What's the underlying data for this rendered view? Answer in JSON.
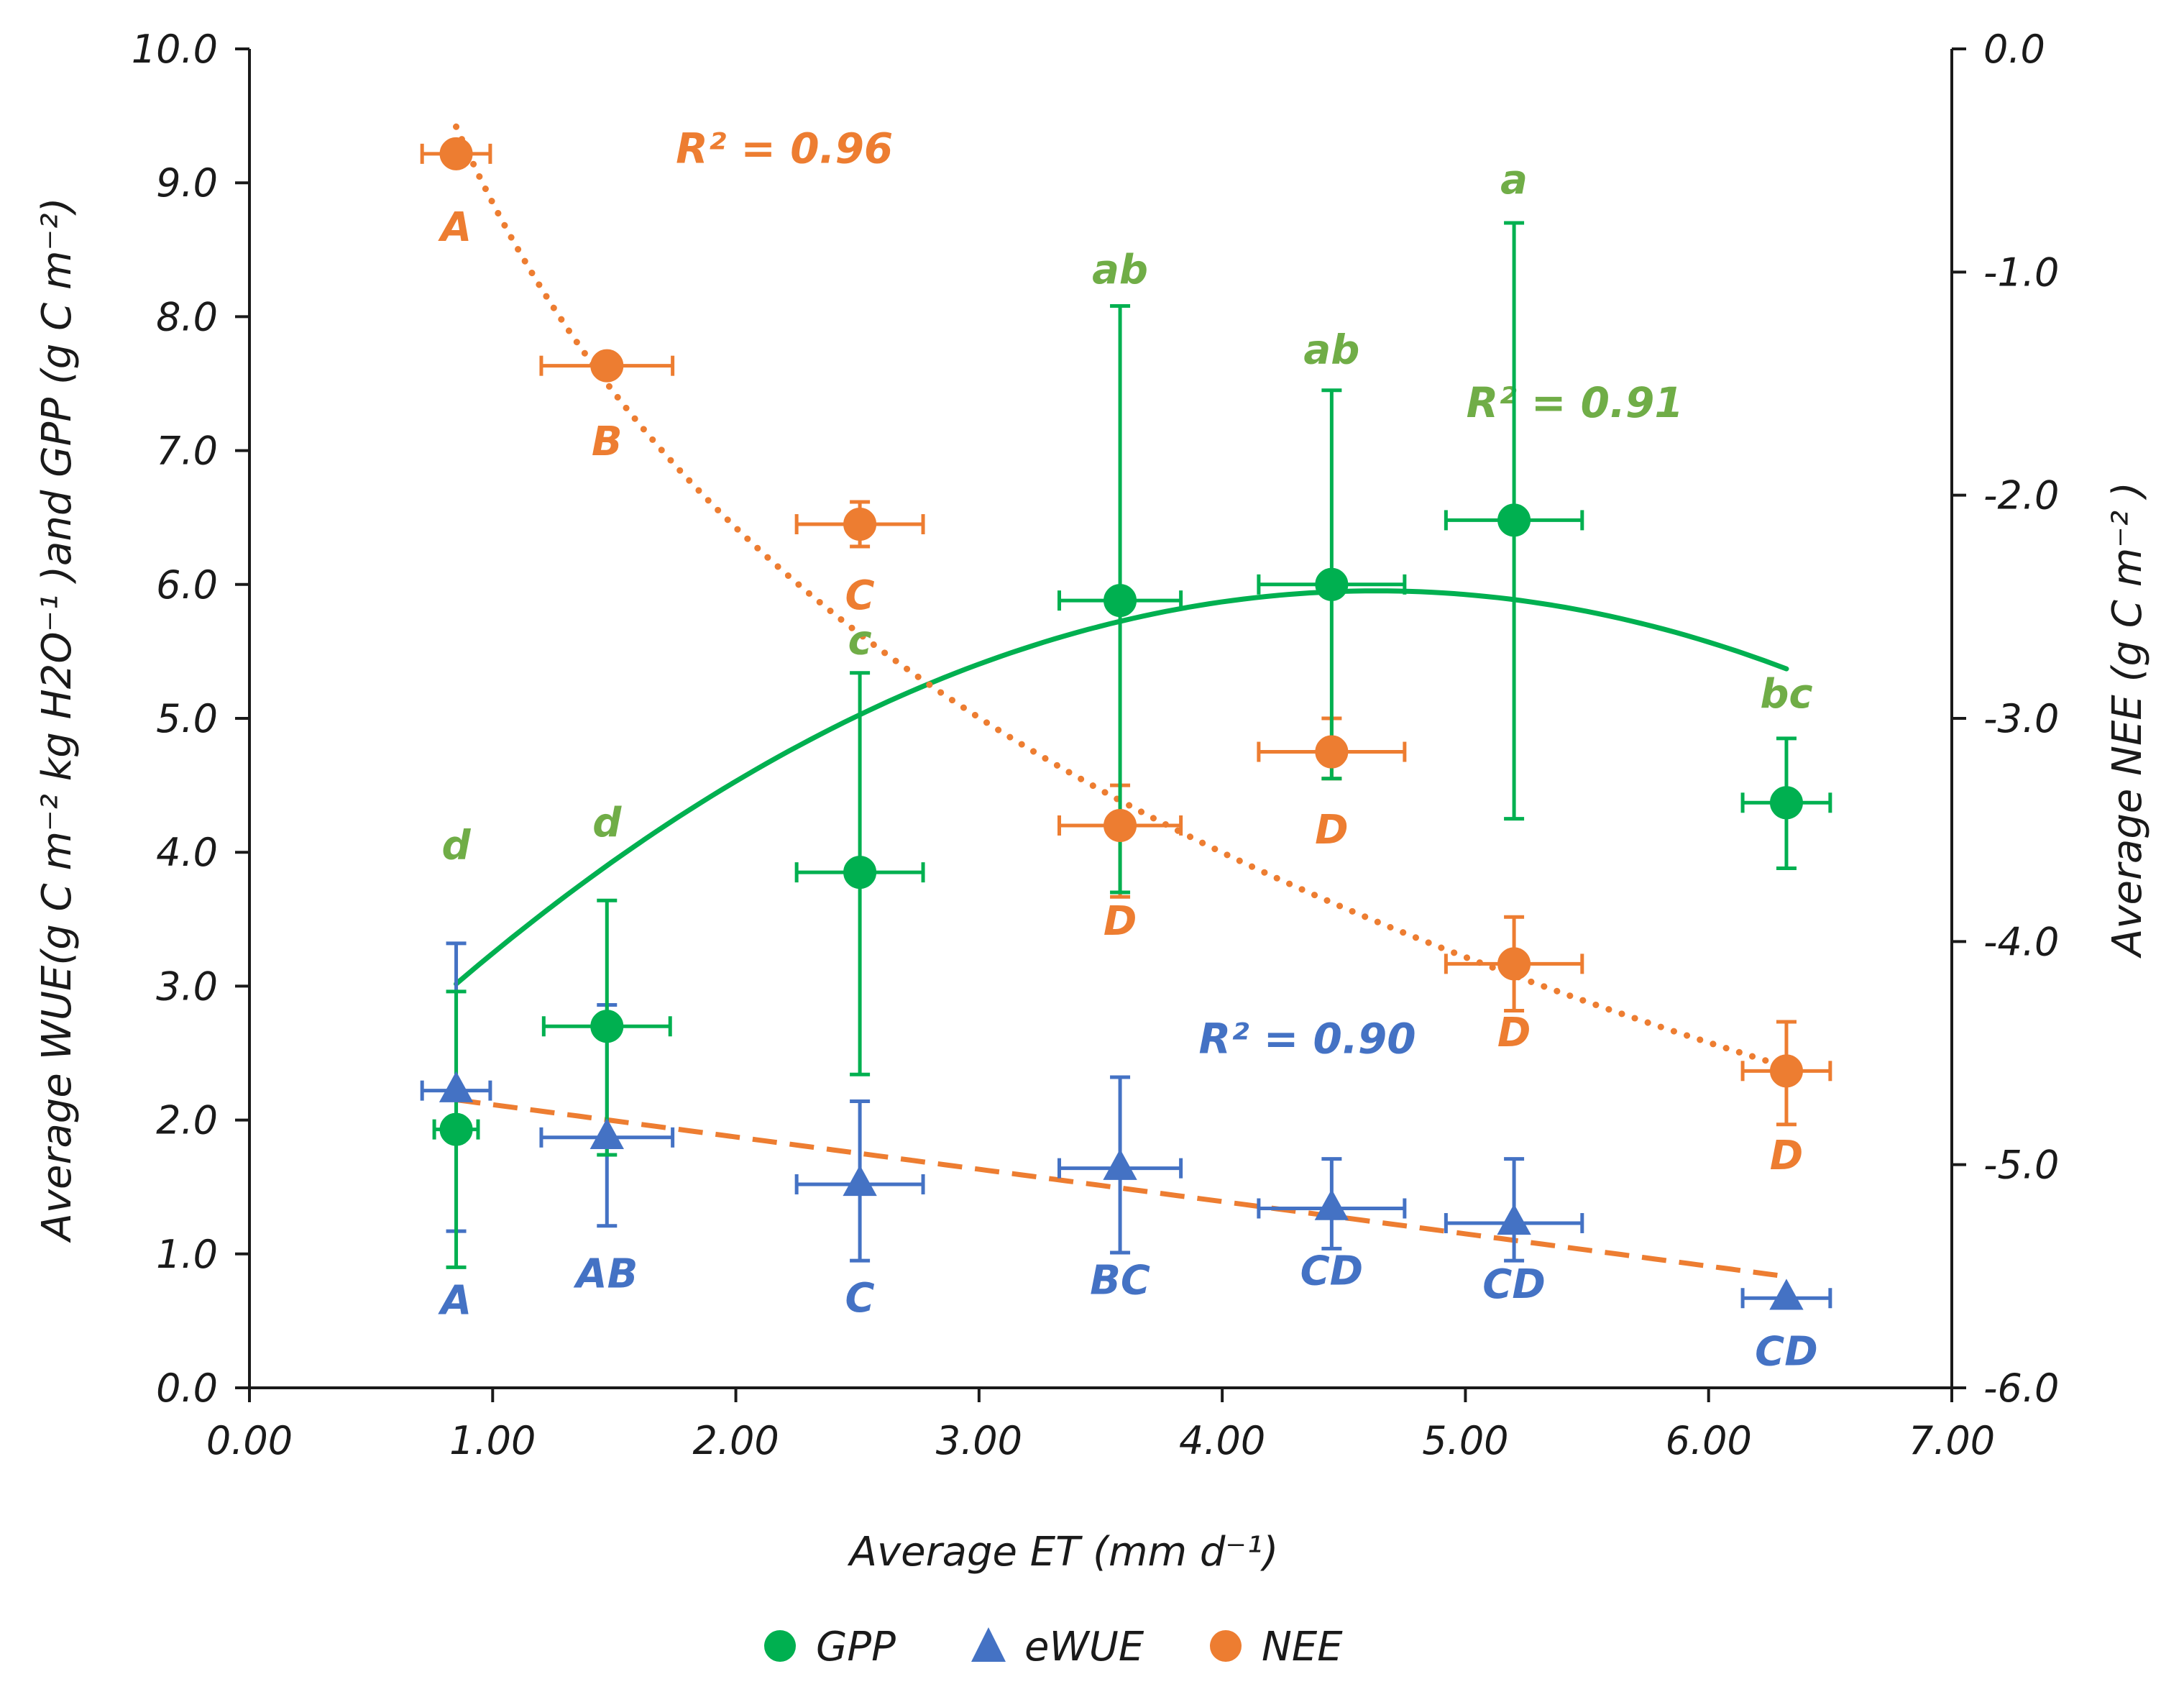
{
  "chart_data": {
    "type": "scatter",
    "xlabel": "Average ET (mm d⁻¹)",
    "ylabel_left": "Average WUE(g C m⁻² kg H2O⁻¹ )and GPP (g C m⁻²)",
    "ylabel_right": "Average NEE (g C m⁻² )",
    "xlim": [
      0,
      7
    ],
    "ylim_left": [
      0,
      10
    ],
    "ylim_right": [
      -6,
      0
    ],
    "x_ticks": [
      "0.00",
      "1.00",
      "2.00",
      "3.00",
      "4.00",
      "5.00",
      "6.00",
      "7.00"
    ],
    "y_left_ticks": [
      "0.0",
      "1.0",
      "2.0",
      "3.0",
      "4.0",
      "5.0",
      "6.0",
      "7.0",
      "8.0",
      "9.0",
      "10.0"
    ],
    "y_right_ticks": [
      "0.0",
      "-1.0",
      "-2.0",
      "-3.0",
      "-4.0",
      "-5.0",
      "-6.0"
    ],
    "colors": {
      "GPP": "#00b050",
      "eWUE": "#4472c4",
      "NEE": "#ed7d31"
    },
    "series": [
      {
        "name": "GPP",
        "axis": "left",
        "marker": "circle",
        "points": [
          {
            "x": 0.85,
            "y": 1.93,
            "xerr": 0.09,
            "yerr_low": 1.03,
            "yerr_high": 1.03,
            "label": "d",
            "label_y": 3.95
          },
          {
            "x": 1.47,
            "y": 2.7,
            "xerr": 0.26,
            "yerr_low": 0.96,
            "yerr_high": 0.94,
            "label": "d",
            "label_y": 4.12
          },
          {
            "x": 2.51,
            "y": 3.85,
            "xerr": 0.26,
            "yerr_low": 1.51,
            "yerr_high": 1.49,
            "label": "c",
            "label_y": 5.48
          },
          {
            "x": 3.58,
            "y": 5.88,
            "xerr": 0.25,
            "yerr_low": 2.18,
            "yerr_high": 2.2,
            "label": "ab",
            "label_y": 8.25
          },
          {
            "x": 4.45,
            "y": 6.0,
            "xerr": 0.3,
            "yerr_low": 1.45,
            "yerr_high": 1.45,
            "label": "ab",
            "label_y": 7.65
          },
          {
            "x": 5.2,
            "y": 6.48,
            "xerr": 0.28,
            "yerr_low": 2.23,
            "yerr_high": 2.22,
            "label": "a",
            "label_y": 8.92
          },
          {
            "x": 6.32,
            "y": 4.37,
            "xerr": 0.18,
            "yerr_low": 0.49,
            "yerr_high": 0.48,
            "label": "bc",
            "label_y": 5.08
          }
        ],
        "trend": {
          "kind": "quadratic",
          "coeffs": [
            -0.205,
            1.9,
            1.55
          ],
          "x_range": [
            0.85,
            6.32
          ],
          "r2_label": "R² = 0.91",
          "label_x": 5.45,
          "label_y": 7.25
        }
      },
      {
        "name": "eWUE",
        "axis": "left",
        "marker": "triangle",
        "points": [
          {
            "x": 0.85,
            "y": 2.22,
            "xerr": 0.14,
            "yerr_low": 1.05,
            "yerr_high": 1.1,
            "label": "A",
            "label_y": 0.55
          },
          {
            "x": 1.47,
            "y": 1.87,
            "xerr": 0.27,
            "yerr_low": 0.66,
            "yerr_high": 0.99,
            "label": "AB",
            "label_y": 0.75
          },
          {
            "x": 2.51,
            "y": 1.52,
            "xerr": 0.26,
            "yerr_low": 0.57,
            "yerr_high": 0.62,
            "label": "C",
            "label_y": 0.57
          },
          {
            "x": 3.58,
            "y": 1.64,
            "xerr": 0.25,
            "yerr_low": 0.63,
            "yerr_high": 0.68,
            "label": "BC",
            "label_y": 0.7
          },
          {
            "x": 4.45,
            "y": 1.34,
            "xerr": 0.3,
            "yerr_low": 0.3,
            "yerr_high": 0.37,
            "label": "CD",
            "label_y": 0.77
          },
          {
            "x": 5.2,
            "y": 1.23,
            "xerr": 0.28,
            "yerr_low": 0.28,
            "yerr_high": 0.48,
            "label": "CD",
            "label_y": 0.67
          },
          {
            "x": 6.32,
            "y": 0.67,
            "xerr": 0.18,
            "yerr_low": 0.0,
            "yerr_high": 0.0,
            "label": "CD",
            "label_y": 0.17
          }
        ],
        "trend": {
          "kind": "linear",
          "coeffs": [
            -0.2412,
            2.356
          ],
          "x_range": [
            0.85,
            6.32
          ],
          "r2_label": "R² = 0.90",
          "label_x": 4.35,
          "label_y": 2.5
        }
      },
      {
        "name": "NEE",
        "axis": "right",
        "marker": "circle",
        "points": [
          {
            "x": 0.85,
            "y": -0.47,
            "xerr": 0.14,
            "yerr_low": 0.0,
            "yerr_high": 0.0,
            "label": "A",
            "label_y": -0.86
          },
          {
            "x": 1.47,
            "y": -1.42,
            "xerr": 0.27,
            "yerr_low": 0.05,
            "yerr_high": 0.05,
            "label": "B",
            "label_y": -1.82
          },
          {
            "x": 2.51,
            "y": -2.13,
            "xerr": 0.26,
            "yerr_low": 0.1,
            "yerr_high": 0.1,
            "label": "C",
            "label_y": -2.51
          },
          {
            "x": 3.58,
            "y": -3.48,
            "xerr": 0.25,
            "yerr_low": 0.32,
            "yerr_high": 0.18,
            "label": "D",
            "label_y": -3.97
          },
          {
            "x": 4.45,
            "y": -3.15,
            "xerr": 0.3,
            "yerr_low": 0.12,
            "yerr_high": 0.15,
            "label": "D",
            "label_y": -3.56
          },
          {
            "x": 5.2,
            "y": -4.1,
            "xerr": 0.28,
            "yerr_low": 0.21,
            "yerr_high": 0.21,
            "label": "D",
            "label_y": -4.47
          },
          {
            "x": 6.32,
            "y": -4.58,
            "xerr": 0.18,
            "yerr_low": 0.24,
            "yerr_high": 0.22,
            "label": "D",
            "label_y": -5.02
          }
        ],
        "trend": {
          "kind": "log",
          "coeffs": [
            -2.1,
            -0.69
          ],
          "x_range": [
            0.85,
            6.32
          ],
          "r2_label": "R² = 0.96",
          "label_x": 2.2,
          "label_y": -0.51
        }
      }
    ],
    "legend": {
      "position": "bottom-center",
      "entries": [
        "GPP",
        "eWUE",
        "NEE"
      ]
    }
  }
}
